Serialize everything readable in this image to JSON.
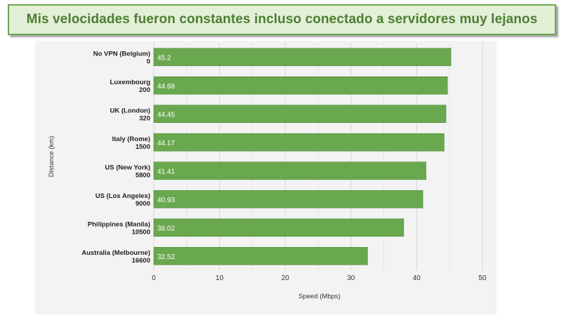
{
  "banner": {
    "title": "Mis velocidades fueron constantes incluso conectado a servidores muy lejanos"
  },
  "colors": {
    "bar": "#6aa84f",
    "bar_border": "#4f8a37",
    "banner_bg": "#e4efd7",
    "banner_text": "#4a7f32",
    "grid": "#d6d6d6"
  },
  "chart_data": {
    "type": "bar",
    "orientation": "horizontal",
    "categories": [
      [
        "No VPN (Belgium)",
        "0"
      ],
      [
        "Luxembourg",
        "200"
      ],
      [
        "UK (London)",
        "320"
      ],
      [
        "Italy (Rome)",
        "1500"
      ],
      [
        "US (New York)",
        "5800"
      ],
      [
        "US (Los Angeles)",
        "9000"
      ],
      [
        "Philippines (Manila)",
        "10500"
      ],
      [
        "Australia (Melbourne)",
        "16600"
      ]
    ],
    "values": [
      45.2,
      44.68,
      44.45,
      44.17,
      41.41,
      40.93,
      38.02,
      32.52
    ],
    "value_labels": [
      "45.2",
      "44.68",
      "44.45",
      "44.17",
      "41.41",
      "40.93",
      "38.02",
      "32.52"
    ],
    "xlabel": "Speed (Mbps)",
    "ylabel": "Distance (km)",
    "xlim": [
      0,
      50
    ],
    "xticks": [
      0,
      10,
      20,
      30,
      40,
      50
    ],
    "grid": true,
    "legend": "none"
  }
}
